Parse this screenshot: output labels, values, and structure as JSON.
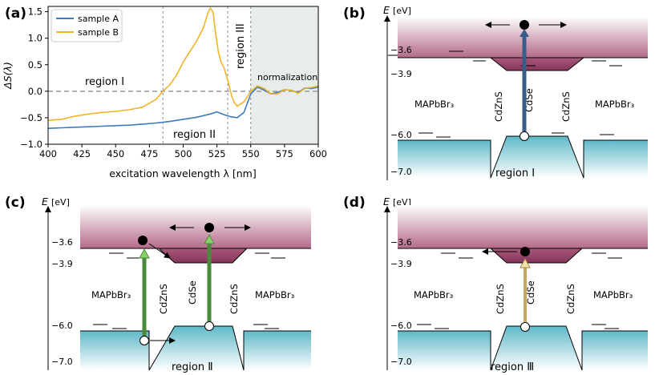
{
  "panels": {
    "a": "(a)",
    "b": "(b)",
    "c": "(c)",
    "d": "(d)"
  },
  "chart_data": {
    "type": "line",
    "title": "",
    "xlabel": "excitation wavelength λ [nm]",
    "ylabel": "ΔS(λ)",
    "xlim": [
      400,
      600
    ],
    "ylim": [
      -1.0,
      1.6
    ],
    "xticks": [
      400,
      425,
      450,
      475,
      500,
      525,
      550,
      575,
      600
    ],
    "yticks": [
      -1.0,
      -0.5,
      0.0,
      0.5,
      1.0,
      1.5
    ],
    "legend_position": "top-left",
    "grid": false,
    "vlines": [
      485,
      533,
      550
    ],
    "hline": 0.0,
    "shaded_range": [
      550,
      600
    ],
    "annotations": {
      "region1": "region I",
      "region2": "region II",
      "region3": "region III",
      "norm": "normalization"
    },
    "series": [
      {
        "name": "sample A",
        "color": "#3b7bbf",
        "x": [
          400,
          410,
          420,
          430,
          440,
          450,
          460,
          470,
          480,
          490,
          500,
          510,
          520,
          525,
          530,
          535,
          540,
          545,
          550,
          555,
          560,
          565,
          570,
          575,
          580,
          585,
          590,
          595,
          600
        ],
        "y": [
          -0.7,
          -0.69,
          -0.68,
          -0.67,
          -0.66,
          -0.65,
          -0.64,
          -0.62,
          -0.6,
          -0.57,
          -0.53,
          -0.49,
          -0.43,
          -0.39,
          -0.44,
          -0.48,
          -0.5,
          -0.4,
          -0.05,
          0.08,
          0.02,
          -0.05,
          -0.02,
          0.03,
          0.02,
          -0.03,
          0.06,
          0.05,
          0.08
        ]
      },
      {
        "name": "sample B",
        "color": "#f0b429",
        "x": [
          400,
          410,
          420,
          430,
          440,
          450,
          460,
          470,
          480,
          485,
          490,
          495,
          500,
          505,
          510,
          515,
          518,
          520,
          522,
          524,
          526,
          528,
          530,
          532,
          534,
          536,
          538,
          540,
          545,
          550,
          555,
          560,
          565,
          570,
          575,
          580,
          585,
          590,
          595,
          600
        ],
        "y": [
          -0.55,
          -0.53,
          -0.47,
          -0.43,
          -0.4,
          -0.38,
          -0.35,
          -0.3,
          -0.15,
          0.0,
          0.12,
          0.3,
          0.55,
          0.75,
          0.95,
          1.2,
          1.45,
          1.57,
          1.5,
          1.1,
          0.75,
          0.55,
          0.45,
          0.3,
          0.1,
          -0.1,
          -0.22,
          -0.28,
          -0.2,
          0.0,
          0.1,
          0.05,
          -0.05,
          -0.05,
          0.03,
          0.02,
          -0.04,
          0.05,
          0.07,
          0.1
        ]
      }
    ]
  },
  "diagrams": {
    "energy_axis_label": "E",
    "energy_unit": "[eV]",
    "levels": {
      "cb": "−3.6",
      "cb2": "−3.9",
      "vb": "−6.0",
      "vb2": "−7.0"
    },
    "materials": {
      "outer": "MAPbBr₃",
      "shell": "CdZnS",
      "core": "CdSe"
    },
    "regions": {
      "b": "region I",
      "c": "region Ⅱ",
      "d": "region Ⅲ"
    }
  }
}
